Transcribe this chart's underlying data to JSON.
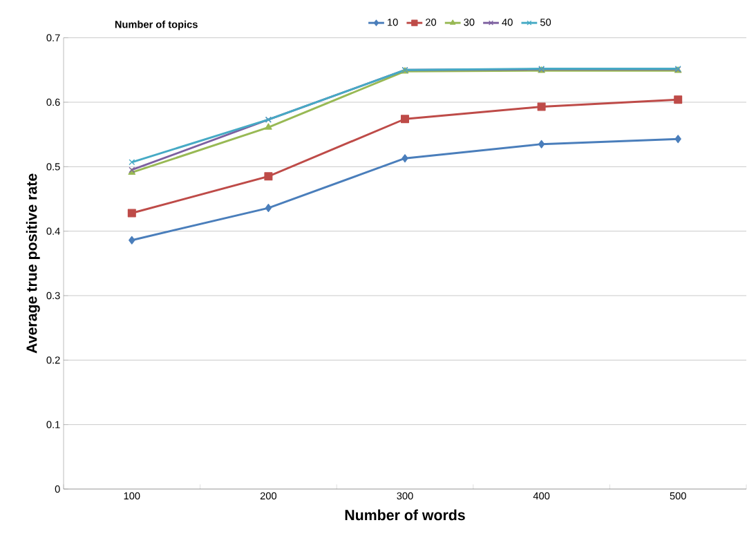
{
  "chart_data": {
    "type": "line",
    "xlabel": "Number of words",
    "ylabel": "Average true positive rate",
    "legend_title": "Number of topics",
    "legend": "top",
    "grid": "y",
    "categories": [
      "100",
      "200",
      "300",
      "400",
      "500"
    ],
    "ylim": [
      0,
      0.7
    ],
    "yticks": [
      0,
      0.1,
      0.2,
      0.3,
      0.4,
      0.5,
      0.6,
      0.7
    ],
    "series": [
      {
        "name": "10",
        "color": "#4a7ebb",
        "marker": "diamond",
        "values": [
          0.386,
          0.436,
          0.513,
          0.535,
          0.543
        ]
      },
      {
        "name": "20",
        "color": "#be4b48",
        "marker": "square",
        "values": [
          0.428,
          0.485,
          0.574,
          0.593,
          0.604
        ]
      },
      {
        "name": "30",
        "color": "#98b954",
        "marker": "triangle",
        "values": [
          0.491,
          0.561,
          0.648,
          0.649,
          0.649
        ]
      },
      {
        "name": "40",
        "color": "#7d60a0",
        "marker": "cross",
        "values": [
          0.495,
          0.573,
          0.65,
          0.651,
          0.651
        ]
      },
      {
        "name": "50",
        "color": "#46aac5",
        "marker": "cross",
        "values": [
          0.507,
          0.573,
          0.65,
          0.652,
          0.652
        ]
      }
    ]
  }
}
